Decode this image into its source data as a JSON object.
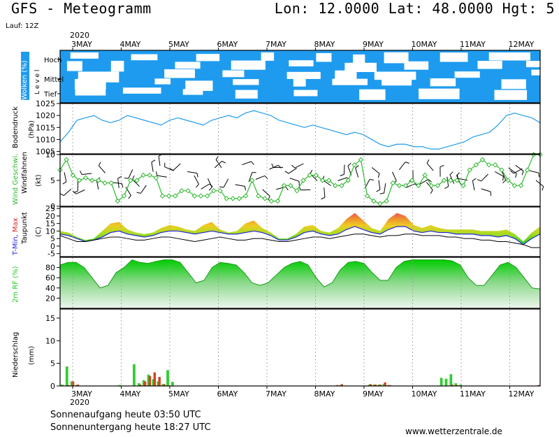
{
  "header": {
    "title": "GFS - Meteogramm",
    "location": "Lon: 12.0000 Lat: 48.0000 Hgt: 5",
    "run": "Lauf: 12Z"
  },
  "footer": {
    "sunrise": "Sonnenaufgang heute 03:50 UTC",
    "sunset": "Sonnenuntergang heute 18:27 UTC",
    "source": "www.wetterzentrale.de"
  },
  "colors": {
    "cloud_bg": "#1e9bef",
    "pressure_line": "#1e9bef",
    "wind_line": "#2db82d",
    "min_temp": "#2222dd",
    "max_temp": "#dd2222",
    "humidity": "#22cc22",
    "precip_rain": "#33cc33",
    "precip_conv": "#cc4422"
  },
  "chart_data": {
    "type": "line",
    "year_label": "2020",
    "dates": [
      "3MAY",
      "4MAY",
      "5MAY",
      "6MAY",
      "7MAY",
      "8MAY",
      "9MAY",
      "10MAY",
      "11MAY",
      "12MAY"
    ],
    "panels": [
      {
        "id": "clouds",
        "ylabel": "Wolken (%)",
        "ylabel2": "L e v e l",
        "levels": [
          "Hoch",
          "Mittel",
          "Tief"
        ],
        "type": "area"
      },
      {
        "id": "pressure",
        "ylabel": "Bodendruck",
        "ylabel2": "(hPa)",
        "ylim": [
          1004,
          1025
        ],
        "ticks": [
          1005,
          1010,
          1015,
          1020,
          1025
        ],
        "type": "line",
        "values": [
          1009,
          1013,
          1018,
          1019,
          1020,
          1018,
          1017,
          1018,
          1020,
          1019,
          1018,
          1017,
          1016,
          1018,
          1019,
          1018,
          1017,
          1016,
          1018,
          1019,
          1020,
          1019,
          1021,
          1022,
          1021,
          1020,
          1018,
          1017,
          1016,
          1015,
          1016,
          1015,
          1014,
          1013,
          1012,
          1013,
          1012,
          1010,
          1008,
          1007,
          1008,
          1008,
          1007,
          1007,
          1006,
          1006,
          1007,
          1008,
          1009,
          1011,
          1012,
          1013,
          1016,
          1020,
          1021,
          1020,
          1019,
          1017
        ]
      },
      {
        "id": "wind",
        "ylabel": "Wind Geschwi.",
        "ylabel2": "Windfahnen",
        "ylabel3": "(kt)",
        "ylim": [
          0,
          10
        ],
        "ticks": [
          0,
          5,
          10
        ],
        "type": "line",
        "values": [
          7,
          9,
          6,
          5,
          5.5,
          5,
          5,
          4.5,
          4.5,
          1,
          2,
          5,
          5,
          6,
          6,
          5.5,
          2,
          2,
          2,
          3,
          3,
          2,
          2,
          2,
          3,
          3,
          1.5,
          1.5,
          1.5,
          2,
          5,
          2,
          1.5,
          1,
          1,
          4,
          4,
          3,
          5,
          6,
          6,
          5,
          5,
          4,
          4,
          5,
          8,
          9,
          2,
          1,
          0.5,
          1,
          4.5,
          4,
          4,
          5,
          4,
          6,
          4,
          4,
          5,
          5,
          5,
          4,
          7,
          8,
          9,
          8,
          8,
          7,
          5,
          4,
          4,
          7,
          10,
          10
        ]
      },
      {
        "id": "temp",
        "ylabel": "T-Min, Max",
        "ylabel2": "Taupunkt",
        "ylabel3": "(C)",
        "ylim": [
          -7,
          26
        ],
        "ticks": [
          -5,
          0,
          5,
          10,
          15,
          20,
          25
        ],
        "type": "area",
        "series": [
          {
            "name": "max",
            "values": [
              10,
              9,
              6,
              4,
              5,
              10,
              15,
              16,
              11,
              9,
              8,
              9,
              12,
              14,
              13,
              11,
              10,
              14,
              16,
              11,
              9,
              10,
              15,
              17,
              12,
              9,
              5,
              5,
              8,
              13,
              14,
              10,
              9,
              12,
              18,
              22,
              17,
              12,
              10,
              18,
              22,
              20,
              14,
              12,
              14,
              12,
              11,
              11,
              11,
              11,
              10,
              10,
              10,
              11,
              8,
              3,
              9,
              13
            ]
          },
          {
            "name": "min",
            "values": [
              8,
              7,
              5,
              3,
              4,
              6,
              9,
              10,
              8,
              7,
              6,
              7,
              9,
              10,
              10,
              9,
              8,
              9,
              10,
              9,
              8,
              8,
              9,
              10,
              9,
              7,
              4,
              4,
              6,
              9,
              10,
              8,
              7,
              8,
              11,
              13,
              11,
              9,
              8,
              11,
              13,
              13,
              10,
              9,
              10,
              9,
              9,
              8,
              8,
              8,
              7,
              7,
              6,
              7,
              5,
              1,
              5,
              8
            ]
          },
          {
            "name": "dew",
            "values": [
              7,
              5,
              3,
              3,
              4,
              5,
              6,
              6,
              5,
              4,
              4,
              5,
              6,
              6,
              5,
              4,
              3,
              4,
              5,
              6,
              5,
              4,
              4,
              5,
              5,
              4,
              3,
              3,
              4,
              5,
              6,
              6,
              5,
              6,
              7,
              8,
              8,
              7,
              6,
              7,
              7,
              8,
              8,
              7,
              7,
              7,
              6,
              6,
              5,
              5,
              4,
              4,
              3,
              3,
              2,
              1,
              -1,
              -1
            ]
          }
        ]
      },
      {
        "id": "humidity",
        "ylabel": "2m RF (%)",
        "ylim": [
          0,
          100
        ],
        "ticks": [
          20,
          40,
          60,
          80
        ],
        "type": "area",
        "values": [
          85,
          90,
          90,
          80,
          60,
          40,
          45,
          70,
          80,
          95,
          90,
          88,
          92,
          95,
          95,
          90,
          70,
          50,
          55,
          80,
          90,
          88,
          85,
          70,
          50,
          45,
          50,
          65,
          80,
          88,
          92,
          85,
          60,
          42,
          50,
          75,
          90,
          92,
          88,
          70,
          55,
          55,
          80,
          92,
          95,
          95,
          95,
          95,
          95,
          93,
          85,
          60,
          45,
          45,
          65,
          85,
          90,
          80,
          60,
          40,
          38
        ]
      },
      {
        "id": "precip",
        "ylabel": "Niederschlag",
        "ylabel2": "(mm)",
        "ylim": [
          0,
          17
        ],
        "ticks": [
          0,
          5,
          10,
          15
        ],
        "type": "bar",
        "rain": [
          0.3,
          4.3,
          1.0,
          0.2,
          0,
          0,
          0,
          0,
          0,
          0,
          0,
          0,
          0.2,
          0,
          0,
          4.8,
          0.6,
          1.3,
          2.5,
          1.5,
          1.0,
          0.4,
          3.5,
          0.9,
          0,
          0,
          0,
          0,
          0,
          0,
          0,
          0,
          0,
          0,
          0,
          0,
          0,
          0,
          0,
          0,
          0,
          0,
          0,
          0,
          0,
          0,
          0,
          0,
          0,
          0,
          0,
          0,
          0,
          0,
          0,
          0,
          0,
          0,
          0.2,
          0,
          0,
          0,
          0,
          0,
          0.3,
          0.3,
          0.3,
          0.4,
          0.2,
          0,
          0,
          0,
          0,
          0,
          0,
          0,
          0,
          0,
          0,
          1.8,
          1.6,
          2.6,
          0.6,
          0.3,
          0,
          0,
          0,
          0,
          0,
          0,
          0,
          0,
          0,
          0,
          0,
          0,
          0,
          0,
          0,
          0
        ],
        "conv": [
          0,
          0.2,
          1.0,
          0.3,
          0,
          0,
          0,
          0,
          0,
          0,
          0,
          0,
          0,
          0,
          0,
          0,
          0.3,
          1.0,
          2.2,
          3.0,
          2.0,
          0.4,
          0.1,
          0,
          0,
          0,
          0.1,
          0,
          0,
          0,
          0,
          0,
          0,
          0,
          0,
          0,
          0,
          0,
          0,
          0,
          0,
          0,
          0,
          0,
          0,
          0,
          0,
          0,
          0,
          0,
          0,
          0,
          0,
          0,
          0,
          0,
          0,
          0.2,
          0.4,
          0,
          0,
          0,
          0,
          0.1,
          0.4,
          0.3,
          0.3,
          0.8,
          0.2,
          0,
          0,
          0,
          0,
          0,
          0,
          0,
          0,
          0,
          0,
          0,
          0.1,
          0.3,
          0.2,
          0,
          0,
          0,
          0,
          0,
          0,
          0,
          0,
          0,
          0,
          0,
          0,
          0,
          0,
          0,
          0,
          0.2
        ]
      }
    ]
  }
}
